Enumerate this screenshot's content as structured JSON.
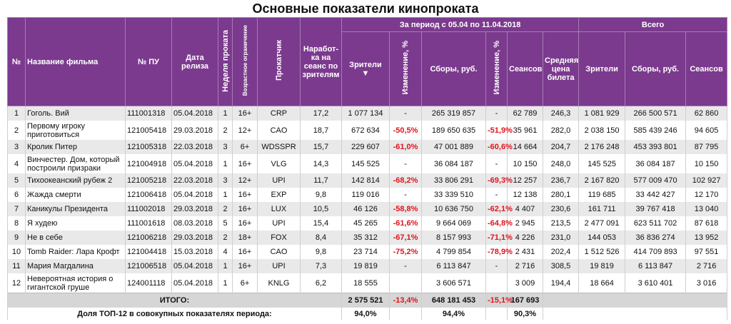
{
  "title": "Основные показатели кинопроката",
  "table": {
    "group_headers": {
      "period": "За период с 05.04 по 11.04.2018",
      "total": "Всего"
    },
    "columns": [
      "№",
      "Название фильма",
      "№ ПУ",
      "Дата релиза",
      "Неделя проката",
      "Возрастное ограничение",
      "Прокатчик",
      "Наработ-ка на сеанс по зрителям",
      "Зрители",
      "Изменение, %",
      "Сборы, руб.",
      "Изменение, %",
      "Сеансов",
      "Средняя цена билета",
      "Зрители",
      "Сборы, руб.",
      "Сеансов"
    ],
    "sort_indicator": "▼",
    "rows": [
      [
        "1",
        "Гоголь. Вий",
        "111001318",
        "05.04.2018",
        "1",
        "16+",
        "CRP",
        "17,2",
        "1 077 134",
        "-",
        "265 319 857",
        "-",
        "62 789",
        "246,3",
        "1 081 929",
        "266 500 571",
        "62 860"
      ],
      [
        "2",
        "Первому игроку приготовиться",
        "121005418",
        "29.03.2018",
        "2",
        "12+",
        "CAO",
        "18,7",
        "672 634",
        "-50,5%",
        "189 650 635",
        "-51,9%",
        "35 961",
        "282,0",
        "2 038 150",
        "585 439 246",
        "94 605"
      ],
      [
        "3",
        "Кролик Питер",
        "121005318",
        "22.03.2018",
        "3",
        "6+",
        "WDSSPR",
        "15,7",
        "229 607",
        "-61,0%",
        "47 001 889",
        "-60,6%",
        "14 664",
        "204,7",
        "2 176 248",
        "453 393 801",
        "87 795"
      ],
      [
        "4",
        "Винчестер. Дом, который построили призраки",
        "121004918",
        "05.04.2018",
        "1",
        "16+",
        "VLG",
        "14,3",
        "145 525",
        "-",
        "36 084 187",
        "-",
        "10 150",
        "248,0",
        "145 525",
        "36 084 187",
        "10 150"
      ],
      [
        "5",
        "Тихоокеанский рубеж 2",
        "121005218",
        "22.03.2018",
        "3",
        "12+",
        "UPI",
        "11,7",
        "142 814",
        "-68,2%",
        "33 806 291",
        "-69,3%",
        "12 257",
        "236,7",
        "2 167 820",
        "577 009 470",
        "102 927"
      ],
      [
        "6",
        "Жажда смерти",
        "121006418",
        "05.04.2018",
        "1",
        "16+",
        "EXP",
        "9,8",
        "119 016",
        "-",
        "33 339 510",
        "-",
        "12 138",
        "280,1",
        "119 685",
        "33 442 427",
        "12 170"
      ],
      [
        "7",
        "Каникулы Президента",
        "111002018",
        "29.03.2018",
        "2",
        "16+",
        "LUX",
        "10,5",
        "46 126",
        "-58,8%",
        "10 636 750",
        "-62,1%",
        "4 407",
        "230,6",
        "161 711",
        "39 767 418",
        "13 040"
      ],
      [
        "8",
        "Я худею",
        "111001618",
        "08.03.2018",
        "5",
        "16+",
        "UPI",
        "15,4",
        "45 265",
        "-61,6%",
        "9 664 069",
        "-64,8%",
        "2 945",
        "213,5",
        "2 477 091",
        "623 511 702",
        "87 618"
      ],
      [
        "9",
        "Не в себе",
        "121006218",
        "29.03.2018",
        "2",
        "18+",
        "FOX",
        "8,4",
        "35 312",
        "-67,1%",
        "8 157 993",
        "-71,1%",
        "4 226",
        "231,0",
        "144 053",
        "36 836 274",
        "13 952"
      ],
      [
        "10",
        "Tomb Raider: Лара Крофт",
        "121004418",
        "15.03.2018",
        "4",
        "16+",
        "CAO",
        "9,8",
        "23 714",
        "-75,2%",
        "4 799 854",
        "-78,9%",
        "2 431",
        "202,4",
        "1 512 526",
        "414 709 893",
        "97 551"
      ],
      [
        "11",
        "Мария Магдалина",
        "121006518",
        "05.04.2018",
        "1",
        "16+",
        "UPI",
        "7,3",
        "19 819",
        "-",
        "6 113 847",
        "-",
        "2 716",
        "308,5",
        "19 819",
        "6 113 847",
        "2 716"
      ],
      [
        "12",
        "Невероятная история о гигантской груше",
        "124001118",
        "05.04.2018",
        "1",
        "6+",
        "KNLG",
        "6,2",
        "18 555",
        null,
        "3 606 571",
        null,
        "3 009",
        "194,4",
        "18 664",
        "3 610 401",
        "3 016"
      ]
    ],
    "totals": {
      "label": "ИТОГО:",
      "values": [
        "2 575 521",
        "-13,4%",
        "648 181 453",
        "-15,1%",
        "167 693"
      ]
    },
    "share": {
      "label": "Доля ТОП-12 в совокупных показателях периода:",
      "viewers": "94,0%",
      "revenue": "94,4%",
      "sessions": "90,3%"
    }
  }
}
